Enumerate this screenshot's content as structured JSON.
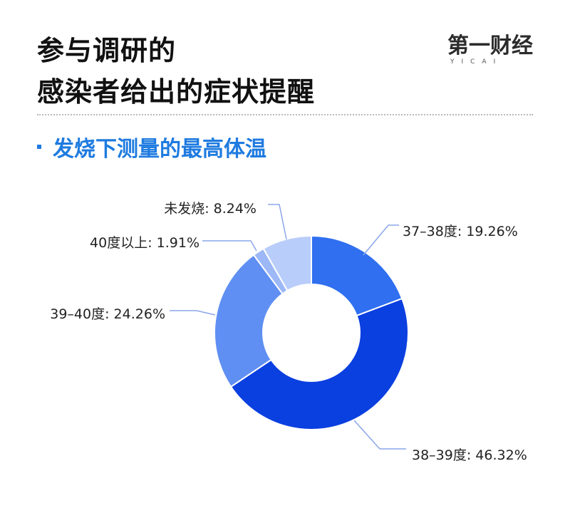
{
  "title_lines": [
    "参与调研的",
    "感染者给出的症状提醒"
  ],
  "logo": {
    "text": "第一财经",
    "sub": "YICAI"
  },
  "subtitle": "发烧下测量的最高体温",
  "colors": {
    "accent": "#1f7be0"
  },
  "chart_data": {
    "type": "pie",
    "donut": true,
    "title": "发烧下测量的最高体温",
    "unit": "%",
    "slices": [
      {
        "label": "37–38度",
        "value": 19.26,
        "color": "#2f6ff0"
      },
      {
        "label": "38–39度",
        "value": 46.32,
        "color": "#0a3fe0"
      },
      {
        "label": "39–40度",
        "value": 24.26,
        "color": "#5f8ff2"
      },
      {
        "label": "40度以上",
        "value": 1.91,
        "color": "#9db8f7"
      },
      {
        "label": "未发烧",
        "value": 8.24,
        "color": "#b9cdfa"
      }
    ],
    "labels": [
      "37–38度: 19.26%",
      "38–39度: 46.32%",
      "39–40度: 24.26%",
      "40度以上: 1.91%",
      "未发烧: 8.24%"
    ]
  }
}
